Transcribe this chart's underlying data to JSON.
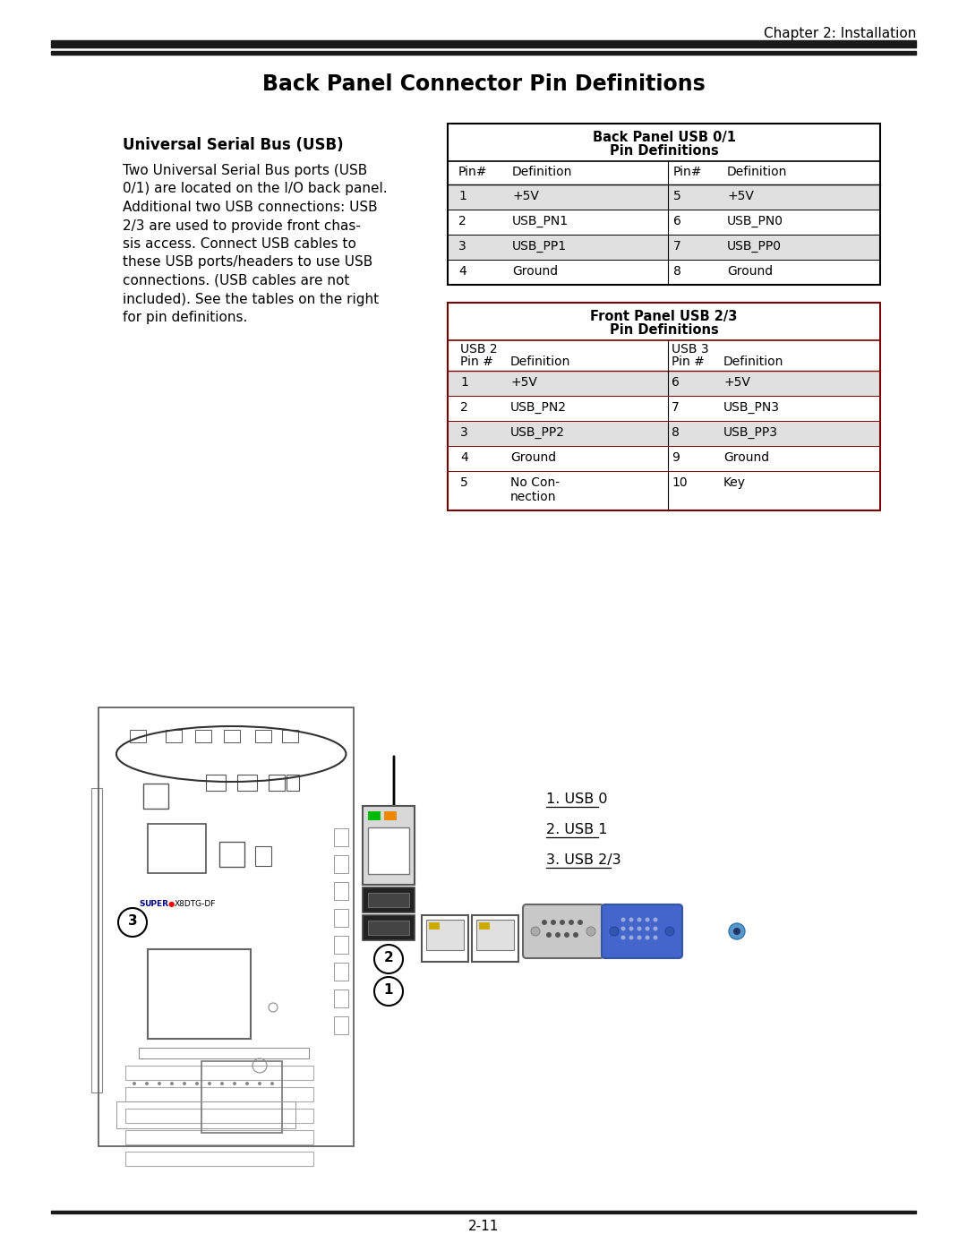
{
  "page_title": "Chapter 2: Installation",
  "main_title": "Back Panel Connector Pin Definitions",
  "section_title": "Universal Serial Bus (USB)",
  "body_text": [
    "Two Universal Serial Bus ports (USB",
    "0/1) are located on the I/O back panel.",
    "Additional two USB connections: USB",
    "2/3 are used to provide front chas-",
    "sis access. Connect USB cables to",
    "these USB ports/headers to use USB",
    "connections. (USB cables are not",
    "included). See the tables on the right",
    "for pin definitions."
  ],
  "table1_title1": "Back Panel USB 0/1",
  "table1_title2": "Pin Definitions",
  "table1_headers": [
    "Pin#",
    "Definition",
    "Pin#",
    "Definition"
  ],
  "table1_rows": [
    [
      "1",
      "+5V",
      "5",
      "+5V"
    ],
    [
      "2",
      "USB_PN1",
      "6",
      "USB_PN0"
    ],
    [
      "3",
      "USB_PP1",
      "7",
      "USB_PP0"
    ],
    [
      "4",
      "Ground",
      "8",
      "Ground"
    ]
  ],
  "table1_shaded_rows": [
    0,
    2
  ],
  "table2_title1": "Front Panel USB 2/3",
  "table2_title2": "Pin Definitions",
  "table2_headers": [
    "Pin #",
    "Definition",
    "Pin #",
    "Definition"
  ],
  "table2_rows": [
    [
      "1",
      "+5V",
      "6",
      "+5V"
    ],
    [
      "2",
      "USB_PN2",
      "7",
      "USB_PN3"
    ],
    [
      "3",
      "USB_PP2",
      "8",
      "USB_PP3"
    ],
    [
      "4",
      "Ground",
      "9",
      "Ground"
    ],
    [
      "5",
      "No Con-\nnection",
      "10",
      "Key"
    ]
  ],
  "table2_shaded_rows": [
    0,
    2
  ],
  "legend_items": [
    "1. USB 0",
    "2. USB 1",
    "3. USB 2/3"
  ],
  "page_number": "2-11",
  "bg_color": "#ffffff",
  "table_shaded_bg": "#e0e0e0",
  "header_bar_color": "#1a1a1a",
  "border_color": "#000000",
  "table2_border_color": "#7a0000"
}
